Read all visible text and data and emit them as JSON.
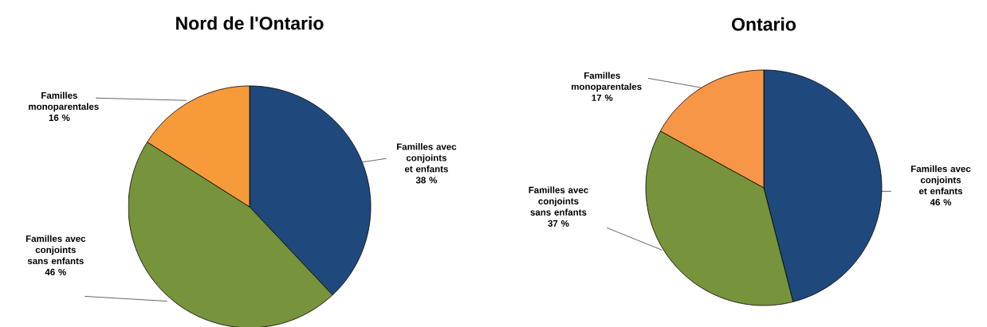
{
  "chart_data": [
    {
      "type": "pie",
      "title": "Nord de l'Ontario",
      "categories": [
        "Familles avec conjoints et enfants",
        "Familles avec conjoints sans enfants",
        "Familles monoparentales"
      ],
      "values": [
        38,
        46,
        16
      ],
      "colors": [
        "#1f497d",
        "#77933c",
        "#f79a3a"
      ],
      "value_labels": [
        "38 %",
        "46 %",
        "16 %"
      ]
    },
    {
      "type": "pie",
      "title": "Ontario",
      "categories": [
        "Familles avec conjoints et enfants",
        "Familles avec conjoints sans enfants",
        "Familles monoparentales"
      ],
      "values": [
        46,
        37,
        17
      ],
      "colors": [
        "#1f497d",
        "#77933c",
        "#f79646"
      ],
      "value_labels": [
        "46 %",
        "37 %",
        "17 %"
      ]
    }
  ]
}
